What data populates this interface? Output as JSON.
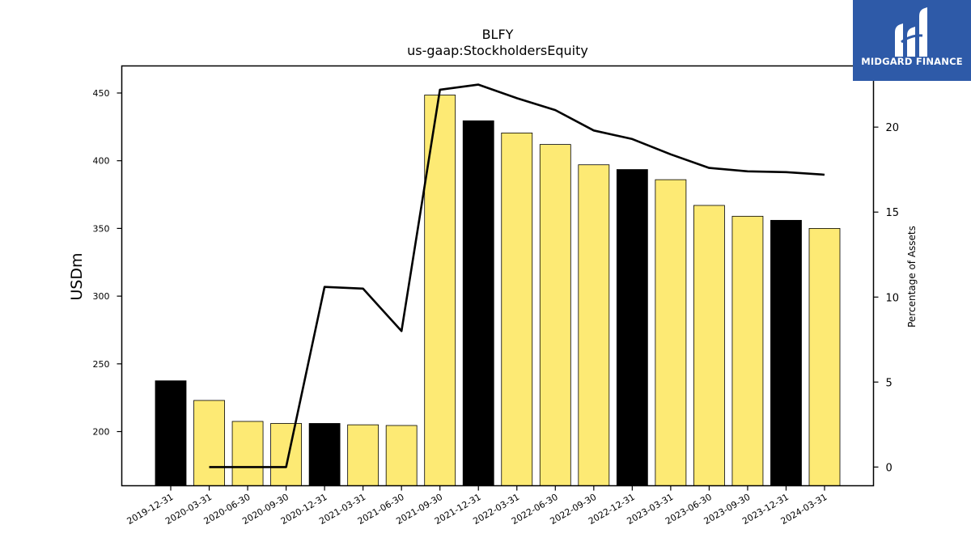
{
  "chart_data": {
    "type": "bar",
    "title": "BLFY",
    "subtitle": "us-gaap:StockholdersEquity",
    "ylabel": "USDm",
    "y2label": "Percentage of Assets",
    "ylim": [
      160,
      470
    ],
    "y2lim": [
      -1.1,
      23.6
    ],
    "yticks": [
      200,
      250,
      300,
      350,
      400,
      450
    ],
    "y2ticks": [
      0,
      5,
      10,
      15,
      20
    ],
    "categories": [
      "2019-12-31",
      "2020-03-31",
      "2020-06-30",
      "2020-09-30",
      "2020-12-31",
      "2021-03-31",
      "2021-06-30",
      "2021-09-30",
      "2021-12-31",
      "2022-03-31",
      "2022-06-30",
      "2022-09-30",
      "2022-12-31",
      "2023-03-31",
      "2023-06-30",
      "2023-09-30",
      "2023-12-31",
      "2024-03-31"
    ],
    "series": [
      {
        "type": "bar",
        "axis": "left",
        "values": [
          237.5,
          223.0,
          207.5,
          206.0,
          206.0,
          205.0,
          204.5,
          448.5,
          429.5,
          420.5,
          412.0,
          397.0,
          393.5,
          386.0,
          367.0,
          359.0,
          356.0,
          350.0
        ]
      },
      {
        "type": "line",
        "axis": "right",
        "values": [
          null,
          0.0,
          0.0,
          0.0,
          10.6,
          10.5,
          8.0,
          22.2,
          22.5,
          21.7,
          21.0,
          19.8,
          19.3,
          18.4,
          17.6,
          17.4,
          17.35,
          17.2
        ]
      }
    ],
    "bar_colors": {
      "year_end": "#000000",
      "quarter": "#fdea74"
    },
    "line_color": "#000000",
    "grid": false
  },
  "logo": {
    "text": "MIDGARD FINANCE",
    "background": "#2e5aa8"
  }
}
